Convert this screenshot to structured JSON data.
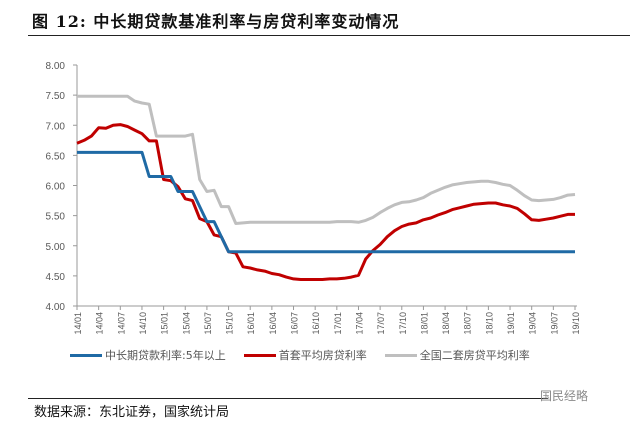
{
  "title": "图 12:  中长期贷款基准利率与房贷利率变动情况",
  "source": "数据来源：东北证券，国家统计局",
  "watermark": "国民经略",
  "chart_data": {
    "type": "line",
    "title": "",
    "xlabel": "",
    "ylabel": "",
    "ylim": [
      4.0,
      8.0
    ],
    "yticks": [
      "4.00",
      "4.50",
      "5.00",
      "5.50",
      "6.00",
      "6.50",
      "7.00",
      "7.50",
      "8.00"
    ],
    "xticks": [
      "14/01",
      "14/04",
      "14/07",
      "14/10",
      "15/01",
      "15/04",
      "15/07",
      "15/10",
      "16/01",
      "16/04",
      "16/07",
      "16/10",
      "17/01",
      "17/04",
      "17/07",
      "17/10",
      "18/01",
      "18/04",
      "18/07",
      "18/10",
      "19/01",
      "19/04",
      "19/07",
      "19/10"
    ],
    "x_start": "14/01",
    "x_end": "19/10",
    "grid": false,
    "legend_position": "bottom",
    "series": [
      {
        "name": "中长期贷款利率:5年以上",
        "color": "#1f6aa5",
        "values": [
          6.55,
          6.55,
          6.55,
          6.55,
          6.55,
          6.55,
          6.55,
          6.55,
          6.55,
          6.55,
          6.15,
          6.15,
          6.15,
          6.15,
          5.9,
          5.9,
          5.9,
          5.65,
          5.4,
          5.4,
          5.15,
          4.9,
          4.9,
          4.9,
          4.9,
          4.9,
          4.9,
          4.9,
          4.9,
          4.9,
          4.9,
          4.9,
          4.9,
          4.9,
          4.9,
          4.9,
          4.9,
          4.9,
          4.9,
          4.9,
          4.9,
          4.9,
          4.9,
          4.9,
          4.9,
          4.9,
          4.9,
          4.9,
          4.9,
          4.9,
          4.9,
          4.9,
          4.9,
          4.9,
          4.9,
          4.9,
          4.9,
          4.9,
          4.9,
          4.9,
          4.9,
          4.9,
          4.9,
          4.9,
          4.9,
          4.9,
          4.9,
          4.9,
          4.9,
          4.9
        ]
      },
      {
        "name": "首套平均房贷利率",
        "color": "#c00000",
        "values": [
          6.7,
          6.75,
          6.82,
          6.96,
          6.95,
          7.0,
          7.01,
          6.98,
          6.92,
          6.86,
          6.74,
          6.74,
          6.1,
          6.08,
          5.98,
          5.78,
          5.75,
          5.45,
          5.4,
          5.18,
          5.15,
          4.9,
          4.88,
          4.65,
          4.63,
          4.6,
          4.58,
          4.54,
          4.52,
          4.48,
          4.45,
          4.44,
          4.44,
          4.44,
          4.44,
          4.45,
          4.45,
          4.46,
          4.48,
          4.51,
          4.78,
          4.92,
          5.02,
          5.15,
          5.25,
          5.32,
          5.36,
          5.38,
          5.43,
          5.46,
          5.51,
          5.55,
          5.6,
          5.63,
          5.66,
          5.69,
          5.7,
          5.71,
          5.71,
          5.68,
          5.66,
          5.62,
          5.53,
          5.43,
          5.42,
          5.44,
          5.46,
          5.49,
          5.52,
          5.52
        ]
      },
      {
        "name": "全国二套房贷平均利率",
        "color": "#bfbfbf",
        "values": [
          7.48,
          7.48,
          7.48,
          7.48,
          7.48,
          7.48,
          7.48,
          7.48,
          7.4,
          7.37,
          7.35,
          6.82,
          6.82,
          6.82,
          6.82,
          6.82,
          6.85,
          6.1,
          5.9,
          5.92,
          5.65,
          5.65,
          5.37,
          5.38,
          5.39,
          5.39,
          5.39,
          5.39,
          5.39,
          5.39,
          5.39,
          5.39,
          5.39,
          5.39,
          5.39,
          5.39,
          5.4,
          5.4,
          5.4,
          5.39,
          5.42,
          5.47,
          5.55,
          5.62,
          5.68,
          5.72,
          5.73,
          5.76,
          5.8,
          5.87,
          5.92,
          5.97,
          6.01,
          6.03,
          6.05,
          6.06,
          6.07,
          6.07,
          6.05,
          6.02,
          6.0,
          5.92,
          5.83,
          5.76,
          5.75,
          5.76,
          5.77,
          5.8,
          5.84,
          5.85
        ]
      }
    ]
  }
}
